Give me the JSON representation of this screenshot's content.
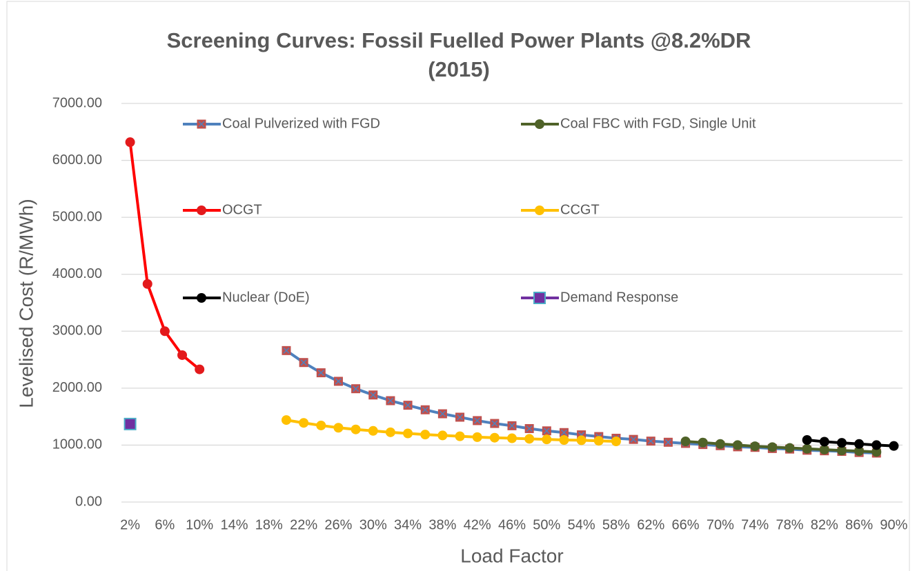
{
  "chart_data": {
    "type": "line",
    "title": "Screening Curves: Fossil Fuelled Power Plants @8.2%DR (2015)",
    "xlabel": "Load Factor",
    "ylabel": "Levelised Cost (R/MWh)",
    "categories": [
      "2%",
      null,
      "6%",
      null,
      "10%",
      null,
      "14%",
      null,
      "18%",
      null,
      "22%",
      null,
      "26%",
      null,
      "30%",
      null,
      "34%",
      null,
      "38%",
      null,
      "42%",
      null,
      "46%",
      null,
      "50%",
      null,
      "54%",
      null,
      "58%",
      null,
      "62%",
      null,
      "66%",
      null,
      "70%",
      null,
      "74%",
      null,
      "78%",
      null,
      "82%",
      null,
      "86%",
      null,
      "90%"
    ],
    "ylim": [
      0,
      7000
    ],
    "yticks": [
      {
        "value": 0,
        "label": "0.00"
      },
      {
        "value": 1000,
        "label": "1000.00"
      },
      {
        "value": 2000,
        "label": "2000.00"
      },
      {
        "value": 3000,
        "label": "3000.00"
      },
      {
        "value": 4000,
        "label": "4000.00"
      },
      {
        "value": 5000,
        "label": "5000.00"
      },
      {
        "value": 6000,
        "label": "6000.00"
      },
      {
        "value": 7000,
        "label": "7000.00"
      }
    ],
    "grid": true,
    "series": [
      {
        "name": "Coal Pulverized with FGD",
        "color": "#4F81BD",
        "marker": "square-x",
        "marker_color": "#C0504D",
        "values": [
          null,
          null,
          null,
          null,
          null,
          null,
          null,
          null,
          null,
          2660,
          2450,
          2270,
          2120,
          1990,
          1880,
          1780,
          1700,
          1620,
          1550,
          1490,
          1430,
          1380,
          1340,
          1290,
          1250,
          1220,
          1180,
          1150,
          1120,
          1100,
          1070,
          1050,
          1030,
          1010,
          990,
          970,
          960,
          940,
          930,
          910,
          900,
          890,
          870,
          860,
          null
        ]
      },
      {
        "name": "Coal FBC with FGD, Single Unit",
        "color": "#4F6228",
        "marker": "circle",
        "marker_color": "#4F6228",
        "values": [
          null,
          null,
          null,
          null,
          null,
          null,
          null,
          null,
          null,
          null,
          null,
          null,
          null,
          null,
          null,
          null,
          null,
          null,
          null,
          null,
          null,
          null,
          null,
          null,
          null,
          null,
          null,
          null,
          null,
          null,
          null,
          null,
          1065,
          1045,
          1020,
          1000,
          980,
          965,
          950,
          935,
          920,
          905,
          895,
          880,
          null
        ]
      },
      {
        "name": "OCGT",
        "color": "#FF0000",
        "marker": "circle",
        "marker_color": "#E31A1C",
        "values": [
          6320,
          3830,
          3000,
          2580,
          2330,
          null,
          null,
          null,
          null,
          null,
          null,
          null,
          null,
          null,
          null,
          null,
          null,
          null,
          null,
          null,
          null,
          null,
          null,
          null,
          null,
          null,
          null,
          null,
          null,
          null,
          null,
          null,
          null,
          null,
          null,
          null,
          null,
          null,
          null,
          null,
          null,
          null,
          null,
          null,
          null
        ]
      },
      {
        "name": "CCGT",
        "color": "#FFC000",
        "marker": "circle",
        "marker_color": "#FFC000",
        "values": [
          null,
          null,
          null,
          null,
          null,
          null,
          null,
          null,
          null,
          1440,
          1390,
          1345,
          1305,
          1275,
          1250,
          1225,
          1205,
          1185,
          1170,
          1155,
          1140,
          1130,
          1120,
          1110,
          1100,
          1090,
          1085,
          1075,
          1065,
          null,
          null,
          null,
          null,
          null,
          null,
          null,
          null,
          null,
          null,
          null,
          null,
          null,
          null,
          null,
          null
        ]
      },
      {
        "name": "Nuclear (DoE)",
        "color": "#000000",
        "marker": "circle",
        "marker_color": "#000000",
        "values": [
          null,
          null,
          null,
          null,
          null,
          null,
          null,
          null,
          null,
          null,
          null,
          null,
          null,
          null,
          null,
          null,
          null,
          null,
          null,
          null,
          null,
          null,
          null,
          null,
          null,
          null,
          null,
          null,
          null,
          null,
          null,
          null,
          null,
          null,
          null,
          null,
          null,
          null,
          null,
          1090,
          1060,
          1040,
          1020,
          1000,
          985
        ]
      },
      {
        "name": "Demand Response",
        "color": "#7030A0",
        "marker": "square",
        "marker_color": "#7030A0",
        "marker_edge": "#4BACC6",
        "values": [
          1370,
          null,
          null,
          null,
          null,
          null,
          null,
          null,
          null,
          null,
          null,
          null,
          null,
          null,
          null,
          null,
          null,
          null,
          null,
          null,
          null,
          null,
          null,
          null,
          null,
          null,
          null,
          null,
          null,
          null,
          null,
          null,
          null,
          null,
          null,
          null,
          null,
          null,
          null,
          null,
          null,
          null,
          null,
          null,
          null
        ]
      }
    ]
  }
}
